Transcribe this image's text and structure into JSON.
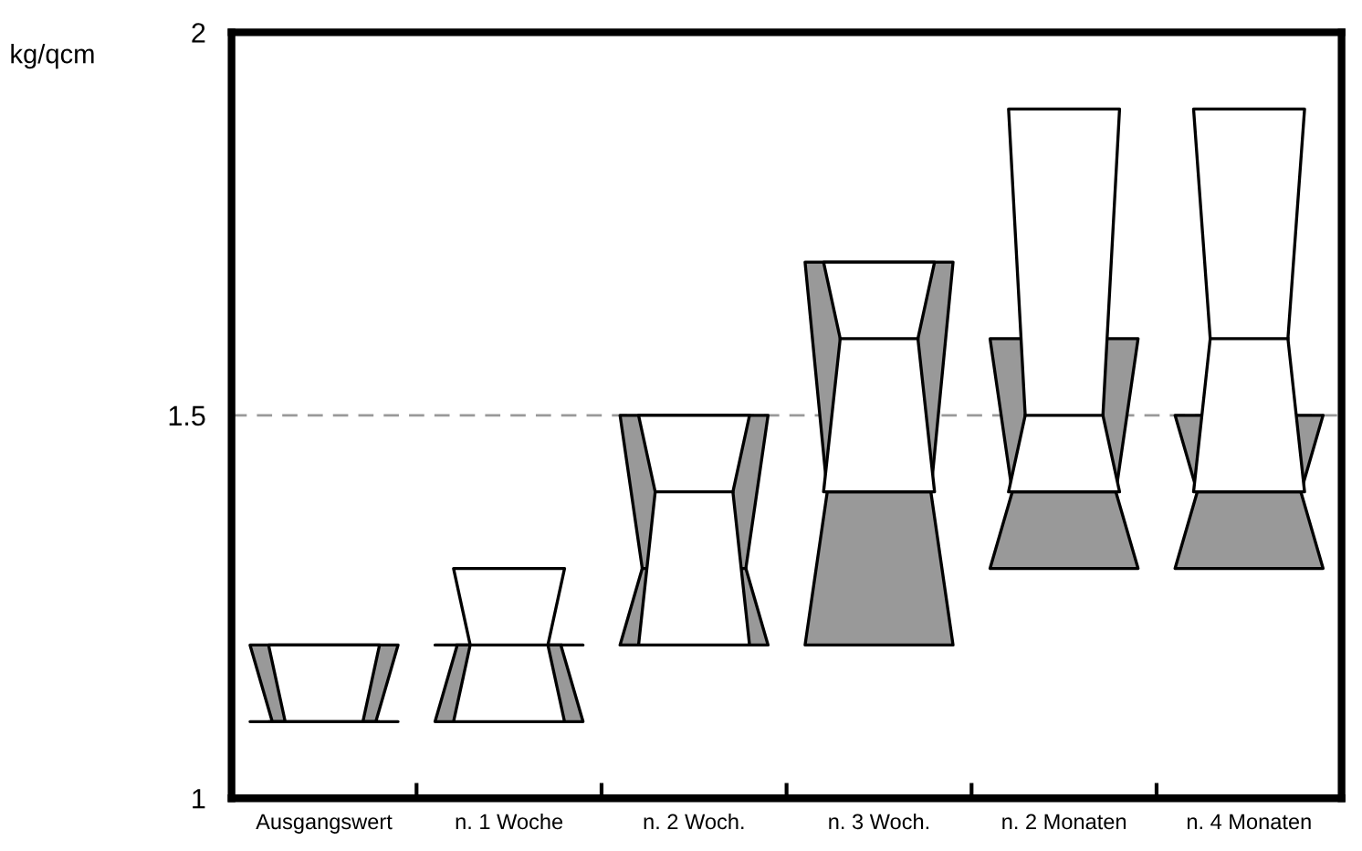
{
  "chart_data": {
    "type": "box",
    "ylabel": "kg/qcm",
    "categories": [
      "Ausgangswert",
      "n. 1 Woche",
      "n. 2 Woch.",
      "n. 3 Woch.",
      "n. 2 Monaten",
      "n. 4 Monaten"
    ],
    "series": [
      {
        "color": "#999999",
        "boxes": [
          {
            "low": 1.1,
            "q1": 1.1,
            "median": 1.1,
            "q3": 1.2,
            "high": 1.2
          },
          {
            "low": 1.1,
            "q1": 1.1,
            "median": 1.2,
            "q3": 1.2,
            "high": 1.2
          },
          {
            "low": 1.2,
            "q1": 1.2,
            "median": 1.3,
            "q3": 1.5,
            "high": 1.5
          },
          {
            "low": 1.2,
            "q1": 1.2,
            "median": 1.4,
            "q3": 1.7,
            "high": 1.7
          },
          {
            "low": 1.3,
            "q1": 1.3,
            "median": 1.4,
            "q3": 1.6,
            "high": 1.6
          },
          {
            "low": 1.3,
            "q1": 1.3,
            "median": 1.4,
            "q3": 1.5,
            "high": 1.5
          }
        ]
      },
      {
        "color": "#ffffff",
        "boxes": [
          {
            "low": 1.1,
            "q1": 1.1,
            "median": 1.1,
            "q3": 1.2,
            "high": 1.2
          },
          {
            "low": 1.1,
            "q1": 1.1,
            "median": 1.2,
            "q3": 1.3,
            "high": 1.3
          },
          {
            "low": 1.2,
            "q1": 1.2,
            "median": 1.4,
            "q3": 1.5,
            "high": 1.5
          },
          {
            "low": 1.4,
            "q1": 1.4,
            "median": 1.6,
            "q3": 1.7,
            "high": 1.7
          },
          {
            "low": 1.4,
            "q1": 1.4,
            "median": 1.5,
            "q3": 1.9,
            "high": 1.9
          },
          {
            "low": 1.4,
            "q1": 1.4,
            "median": 1.6,
            "q3": 1.9,
            "high": 1.9
          }
        ]
      }
    ],
    "ylim": [
      1,
      2
    ],
    "yticks": [
      1,
      1.5,
      2
    ],
    "ref_lines": [
      {
        "axis": "y",
        "value": 1.5,
        "color": "#999999",
        "line_style": "dashed"
      }
    ],
    "grid": false,
    "legend": false
  }
}
